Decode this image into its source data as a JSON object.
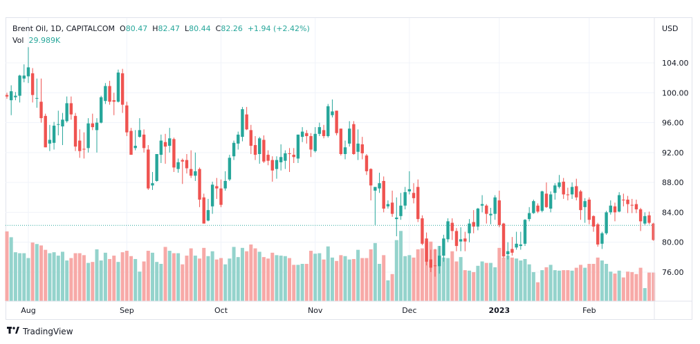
{
  "header": {
    "symbol": "Brent Oil, 1D, CAPITALCOM",
    "o_label": "O",
    "o": "80.47",
    "h_label": "H",
    "h": "82.47",
    "l_label": "L",
    "l": "80.44",
    "c_label": "C",
    "c": "82.26",
    "change": "+1.94 (+2.42%)",
    "vol_label": "Vol",
    "vol": "29.989K"
  },
  "currency": "USD",
  "footer": {
    "brand": "TradingView",
    "logo": "TV"
  },
  "colors": {
    "up": "#26a69a",
    "down": "#ef5350",
    "up_vol": "#94d3cc",
    "down_vol": "#f7a9a7",
    "grid": "#f0f3fa"
  },
  "chart_data": {
    "type": "candlestick",
    "title": "Brent Oil, 1D, CAPITALCOM",
    "ylabel": "USD",
    "ylim": [
      72.6,
      110.4
    ],
    "yticks": [
      "104.00",
      "100.00",
      "96.00",
      "92.00",
      "88.00",
      "84.00",
      "80.00",
      "76.00"
    ],
    "last_price": 82.26,
    "xticks": [
      {
        "label": "Aug",
        "index": 5,
        "bold": false
      },
      {
        "label": "Sep",
        "index": 28,
        "bold": false
      },
      {
        "label": "Oct",
        "index": 50,
        "bold": false
      },
      {
        "label": "Nov",
        "index": 72,
        "bold": false
      },
      {
        "label": "Dec",
        "index": 94,
        "bold": false
      },
      {
        "label": "2023",
        "index": 115,
        "bold": true
      },
      {
        "label": "Feb",
        "index": 136,
        "bold": false
      }
    ],
    "volume_unit": "K",
    "columns": [
      "open",
      "high",
      "low",
      "close",
      "volume"
    ],
    "candles": [
      [
        99.7,
        100.0,
        99.2,
        99.5,
        144
      ],
      [
        99.0,
        101.0,
        97.0,
        100.2,
        132
      ],
      [
        99.4,
        100.1,
        99.0,
        99.6,
        101
      ],
      [
        99.6,
        102.4,
        98.7,
        102.3,
        99
      ],
      [
        101.9,
        103.8,
        101.4,
        102.3,
        99
      ],
      [
        102.2,
        106.1,
        101.3,
        103.4,
        89
      ],
      [
        102.6,
        103.3,
        98.7,
        99.7,
        121
      ],
      [
        99.3,
        101.9,
        98.0,
        99.3,
        118
      ],
      [
        98.8,
        101.9,
        96.0,
        96.6,
        115
      ],
      [
        96.9,
        97.2,
        92.7,
        92.7,
        106
      ],
      [
        93.2,
        95.7,
        92.2,
        93.7,
        99
      ],
      [
        93.3,
        96.1,
        92.4,
        95.6,
        101
      ],
      [
        95.8,
        97.6,
        94.3,
        95.8,
        94
      ],
      [
        95.5,
        97.3,
        93.0,
        96.4,
        102
      ],
      [
        96.2,
        99.5,
        96.0,
        98.6,
        84
      ],
      [
        98.6,
        99.5,
        96.4,
        97.1,
        89
      ],
      [
        96.9,
        97.3,
        92.2,
        92.8,
        99
      ],
      [
        93.6,
        95.1,
        91.3,
        92.2,
        99
      ],
      [
        92.5,
        94.7,
        91.2,
        92.4,
        95
      ],
      [
        92.6,
        96.6,
        92.0,
        95.9,
        79
      ],
      [
        95.9,
        97.2,
        95.0,
        95.4,
        81
      ],
      [
        95.0,
        96.6,
        92.0,
        96.0,
        107
      ],
      [
        96.0,
        99.6,
        95.9,
        99.4,
        84
      ],
      [
        98.9,
        101.3,
        98.5,
        100.9,
        100
      ],
      [
        100.9,
        101.6,
        98.4,
        98.8,
        87
      ],
      [
        99.0,
        100.0,
        97.0,
        98.8,
        94
      ],
      [
        98.8,
        103.1,
        98.7,
        102.7,
        81
      ],
      [
        102.6,
        103.2,
        97.3,
        98.4,
        101
      ],
      [
        98.3,
        98.8,
        94.2,
        94.7,
        104
      ],
      [
        94.9,
        95.3,
        91.7,
        91.7,
        93
      ],
      [
        92.6,
        95.0,
        92.3,
        92.9,
        87
      ],
      [
        94.1,
        96.6,
        94.0,
        95.0,
        61
      ],
      [
        94.4,
        95.1,
        92.0,
        92.6,
        82
      ],
      [
        92.4,
        93.0,
        87.0,
        87.2,
        104
      ],
      [
        87.6,
        89.4,
        87.0,
        87.9,
        100
      ],
      [
        88.2,
        91.8,
        88.1,
        91.8,
        81
      ],
      [
        91.7,
        94.4,
        90.6,
        93.6,
        77
      ],
      [
        93.4,
        94.5,
        90.5,
        92.8,
        112
      ],
      [
        92.9,
        95.3,
        92.0,
        93.9,
        104
      ],
      [
        93.8,
        94.0,
        89.4,
        90.0,
        99
      ],
      [
        89.8,
        91.2,
        89.3,
        90.7,
        99
      ],
      [
        91.0,
        91.2,
        87.8,
        90.8,
        76
      ],
      [
        91.0,
        91.8,
        89.2,
        89.9,
        94
      ],
      [
        89.8,
        92.3,
        88.6,
        88.9,
        109
      ],
      [
        88.9,
        92.0,
        88.2,
        89.5,
        94
      ],
      [
        89.8,
        90.0,
        84.7,
        85.7,
        88
      ],
      [
        86.0,
        86.5,
        82.5,
        82.5,
        110
      ],
      [
        82.9,
        85.8,
        82.8,
        84.3,
        93
      ],
      [
        84.8,
        88.1,
        83.8,
        87.7,
        103
      ],
      [
        87.5,
        88.6,
        85.8,
        87.2,
        86
      ],
      [
        87.2,
        88.4,
        84.7,
        85.0,
        89
      ],
      [
        87.2,
        89.5,
        86.9,
        88.2,
        76
      ],
      [
        88.4,
        91.7,
        88.2,
        91.3,
        88
      ],
      [
        91.5,
        93.6,
        91.0,
        93.3,
        112
      ],
      [
        93.2,
        94.8,
        92.4,
        94.4,
        91
      ],
      [
        94.1,
        98.1,
        93.5,
        97.8,
        110
      ],
      [
        97.1,
        98.1,
        95.0,
        95.1,
        103
      ],
      [
        95.0,
        95.7,
        91.8,
        92.9,
        117
      ],
      [
        93.0,
        94.2,
        91.0,
        91.7,
        109
      ],
      [
        91.8,
        94.1,
        90.5,
        93.9,
        102
      ],
      [
        93.7,
        94.3,
        90.6,
        90.8,
        91
      ],
      [
        91.7,
        92.3,
        90.3,
        90.9,
        88
      ],
      [
        91.0,
        91.5,
        88.1,
        89.6,
        100
      ],
      [
        89.8,
        91.5,
        88.5,
        91.0,
        95
      ],
      [
        90.7,
        93.1,
        89.6,
        91.4,
        94
      ],
      [
        90.9,
        92.3,
        89.8,
        91.9,
        93
      ],
      [
        91.9,
        92.6,
        89.4,
        91.8,
        89
      ],
      [
        91.7,
        92.6,
        90.6,
        91.4,
        75
      ],
      [
        91.2,
        94.4,
        90.6,
        94.4,
        75
      ],
      [
        94.1,
        95.4,
        93.4,
        94.8,
        77
      ],
      [
        94.6,
        95.0,
        93.2,
        94.2,
        77
      ],
      [
        94.2,
        94.6,
        91.4,
        92.4,
        104
      ],
      [
        92.2,
        95.4,
        92.0,
        94.5,
        98
      ],
      [
        94.5,
        96.0,
        94.2,
        95.4,
        99
      ],
      [
        95.0,
        95.7,
        93.9,
        94.2,
        86
      ],
      [
        94.2,
        98.5,
        94.0,
        98.2,
        113
      ],
      [
        97.0,
        99.1,
        96.7,
        97.5,
        90
      ],
      [
        97.6,
        97.6,
        94.3,
        94.6,
        83
      ],
      [
        95.2,
        95.2,
        91.6,
        91.8,
        95
      ],
      [
        91.8,
        93.6,
        91.1,
        92.7,
        93
      ],
      [
        93.2,
        96.2,
        92.8,
        95.2,
        86
      ],
      [
        95.8,
        96.2,
        91.7,
        91.8,
        87
      ],
      [
        92.1,
        95.1,
        91.0,
        93.2,
        106
      ],
      [
        93.1,
        94.1,
        91.1,
        91.9,
        89
      ],
      [
        91.6,
        91.8,
        89.0,
        89.5,
        89
      ],
      [
        89.8,
        89.9,
        85.6,
        87.6,
        107
      ],
      [
        86.9,
        87.3,
        82.3,
        87.4,
        120
      ],
      [
        87.2,
        89.3,
        86.6,
        87.9,
        77
      ],
      [
        88.2,
        88.8,
        84.0,
        84.5,
        95
      ],
      [
        84.8,
        85.6,
        84.5,
        85.1,
        43
      ],
      [
        85.3,
        86.9,
        83.4,
        83.8,
        56
      ],
      [
        83.1,
        86.0,
        80.8,
        83.3,
        126
      ],
      [
        83.5,
        86.6,
        83.0,
        84.9,
        145
      ],
      [
        84.9,
        87.4,
        84.4,
        86.7,
        93
      ],
      [
        86.8,
        89.5,
        86.4,
        87.1,
        95
      ],
      [
        86.6,
        87.9,
        85.2,
        85.9,
        90
      ],
      [
        87.4,
        88.4,
        82.7,
        83.1,
        107
      ],
      [
        83.2,
        83.6,
        79.6,
        79.8,
        109
      ],
      [
        80.5,
        81.3,
        76.9,
        77.4,
        124
      ],
      [
        77.7,
        79.0,
        76.0,
        76.6,
        123
      ],
      [
        76.9,
        79.1,
        75.4,
        76.8,
        107
      ],
      [
        76.8,
        79.5,
        75.8,
        78.2,
        114
      ],
      [
        78.2,
        81.0,
        77.4,
        80.5,
        90
      ],
      [
        80.4,
        83.2,
        80.0,
        82.8,
        89
      ],
      [
        82.6,
        83.2,
        80.3,
        81.5,
        103
      ],
      [
        81.5,
        81.9,
        78.8,
        79.5,
        82
      ],
      [
        80.1,
        82.0,
        78.8,
        80.4,
        91
      ],
      [
        80.5,
        81.4,
        78.8,
        80.1,
        64
      ],
      [
        81.2,
        83.1,
        80.0,
        82.5,
        63
      ],
      [
        82.7,
        84.3,
        81.2,
        82.1,
        60
      ],
      [
        82.1,
        84.6,
        81.6,
        84.5,
        73
      ],
      [
        84.9,
        86.3,
        84.0,
        85.1,
        82
      ],
      [
        84.9,
        85.1,
        82.5,
        83.8,
        79
      ],
      [
        83.6,
        84.6,
        82.4,
        83.8,
        79
      ],
      [
        83.8,
        86.3,
        83.0,
        86.0,
        70
      ],
      [
        85.6,
        86.9,
        82.0,
        82.3,
        110
      ],
      [
        82.5,
        82.6,
        77.9,
        78.1,
        90
      ],
      [
        78.4,
        80.0,
        77.7,
        78.8,
        94
      ],
      [
        79.1,
        80.7,
        78.2,
        78.6,
        90
      ],
      [
        79.3,
        81.4,
        79.0,
        79.8,
        88
      ],
      [
        79.5,
        81.4,
        79.0,
        79.7,
        84
      ],
      [
        79.8,
        83.1,
        79.5,
        83.0,
        87
      ],
      [
        83.1,
        84.7,
        82.8,
        83.9,
        76
      ],
      [
        83.9,
        85.7,
        83.8,
        85.5,
        60
      ],
      [
        84.9,
        85.2,
        83.9,
        84.1,
        39
      ],
      [
        84.2,
        86.9,
        84.0,
        86.8,
        64
      ],
      [
        86.5,
        88.0,
        84.6,
        84.7,
        70
      ],
      [
        84.5,
        86.8,
        84.0,
        86.4,
        75
      ],
      [
        86.6,
        87.9,
        85.7,
        87.6,
        64
      ],
      [
        87.4,
        89.0,
        87.2,
        88.0,
        63
      ],
      [
        88.1,
        88.6,
        85.8,
        86.4,
        64
      ],
      [
        86.4,
        87.3,
        85.6,
        86.3,
        64
      ],
      [
        86.4,
        88.0,
        85.8,
        87.4,
        63
      ],
      [
        87.5,
        88.5,
        85.6,
        86.0,
        69
      ],
      [
        86.8,
        87.0,
        83.0,
        84.3,
        75
      ],
      [
        84.7,
        85.9,
        82.6,
        85.5,
        69
      ],
      [
        85.7,
        86.0,
        82.4,
        83.0,
        77
      ],
      [
        83.5,
        83.6,
        81.4,
        82.1,
        77
      ],
      [
        82.4,
        82.6,
        79.4,
        79.7,
        90
      ],
      [
        79.8,
        81.4,
        79.1,
        81.2,
        84
      ],
      [
        81.2,
        84.2,
        81.0,
        84.0,
        77
      ],
      [
        84.0,
        85.6,
        83.7,
        84.9,
        61
      ],
      [
        84.8,
        85.3,
        82.8,
        84.0,
        57
      ],
      [
        84.1,
        86.7,
        84.0,
        86.3,
        63
      ],
      [
        85.7,
        86.5,
        84.8,
        85.6,
        49
      ],
      [
        85.7,
        86.2,
        83.9,
        85.1,
        61
      ],
      [
        85.0,
        85.8,
        83.9,
        84.9,
        60
      ],
      [
        85.1,
        85.7,
        83.9,
        84.4,
        56
      ],
      [
        84.4,
        84.6,
        81.5,
        82.8,
        69
      ],
      [
        82.5,
        84.0,
        82.3,
        83.5,
        27
      ],
      [
        83.6,
        84.1,
        82.4,
        82.6,
        59
      ],
      [
        82.5,
        82.6,
        80.2,
        80.3,
        59
      ]
    ]
  }
}
